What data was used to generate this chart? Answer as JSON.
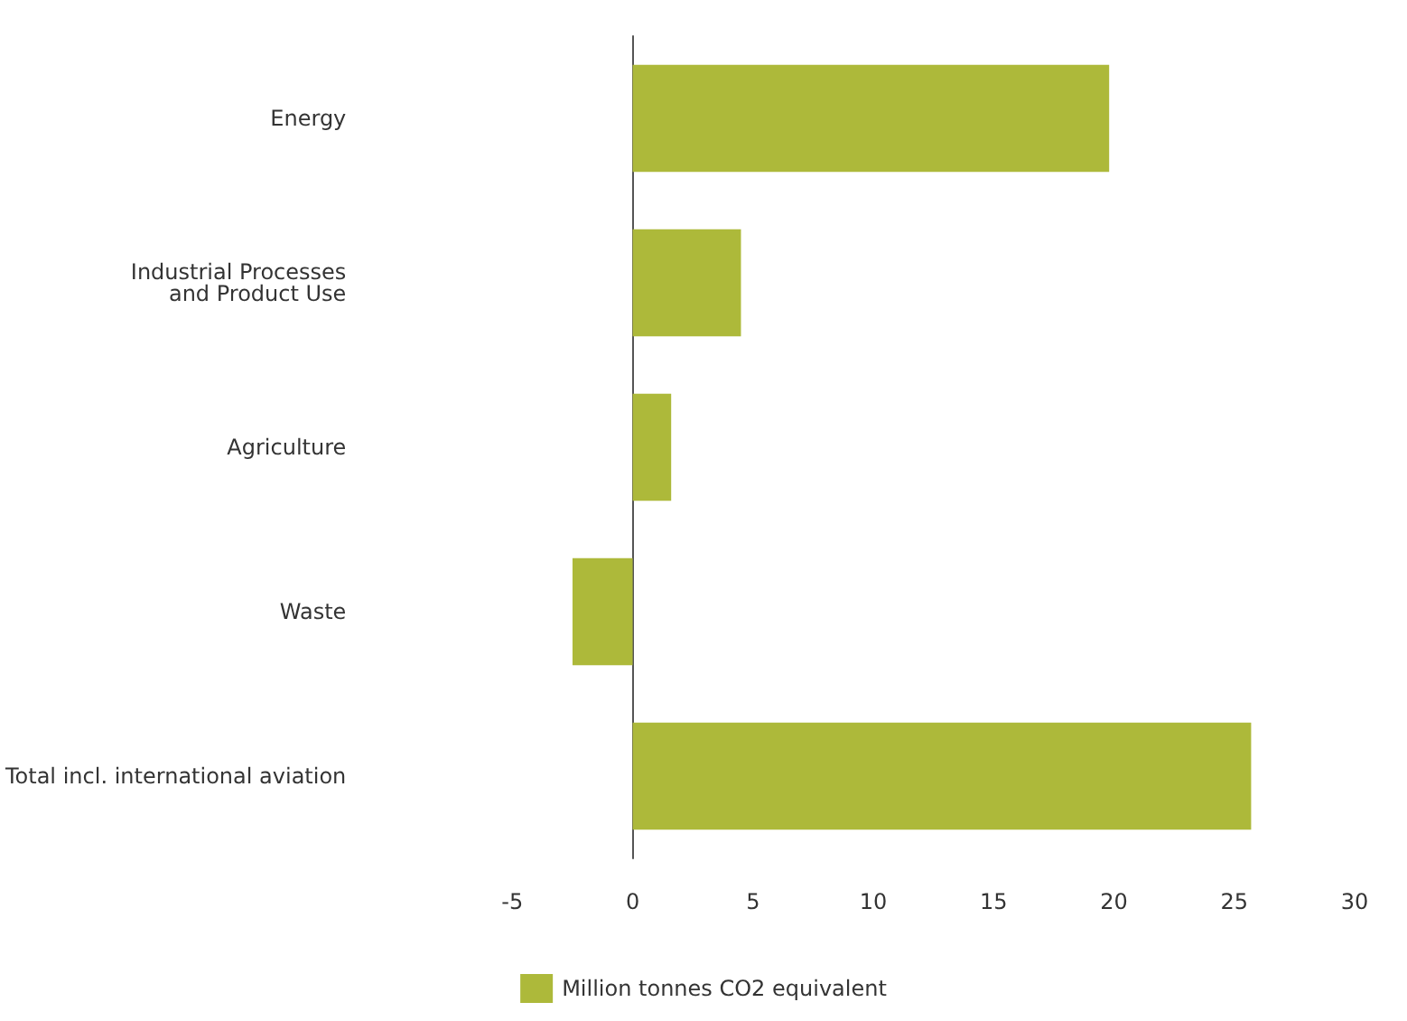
{
  "chart_data": {
    "type": "bar",
    "orientation": "horizontal",
    "categories": [
      "Energy",
      "Industrial Processes\nand Product Use",
      "Agriculture",
      "Waste",
      "Total incl. international aviation"
    ],
    "series": [
      {
        "name": "Million tonnes CO2 equivalent",
        "color": "#adb93a",
        "values": [
          19.8,
          4.5,
          1.6,
          -2.5,
          25.7
        ]
      }
    ],
    "xlim": [
      -5,
      30
    ],
    "xticks": [
      -5,
      0,
      5,
      10,
      15,
      20,
      25,
      30
    ],
    "legend": "bottom"
  }
}
